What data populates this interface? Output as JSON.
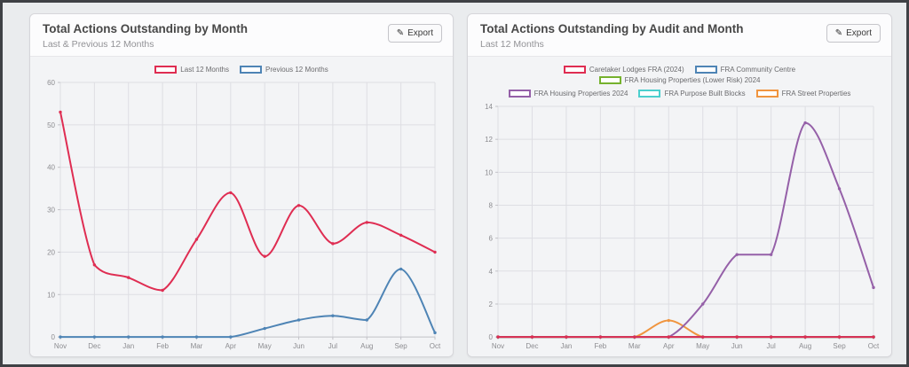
{
  "page": {
    "background": "#eaecee",
    "frame_border_color": "#3f4145"
  },
  "charts": [
    {
      "title": "Total Actions Outstanding by Month",
      "subtitle": "Last & Previous 12 Months",
      "export_label": "Export",
      "export_icon": "✎"
    },
    {
      "title": "Total Actions Outstanding by Audit and Month",
      "subtitle": "Last 12 Months",
      "export_label": "Export",
      "export_icon": "✎"
    }
  ],
  "chart_data": [
    {
      "type": "line",
      "title": "Total Actions Outstanding by Month",
      "categories": [
        "Nov",
        "Dec",
        "Jan",
        "Feb",
        "Mar",
        "Apr",
        "May",
        "Jun",
        "Jul",
        "Aug",
        "Sep",
        "Oct"
      ],
      "series": [
        {
          "name": "Last 12 Months",
          "color": "#df2d52",
          "values": [
            53,
            17,
            14,
            11,
            23,
            34,
            19,
            31,
            22,
            27,
            24,
            20
          ]
        },
        {
          "name": "Previous 12 Months",
          "color": "#4e84b5",
          "values": [
            0,
            0,
            0,
            0,
            0,
            0,
            2,
            4,
            5,
            4,
            16,
            1
          ]
        }
      ],
      "xlabel": "",
      "ylabel": "",
      "ylim": [
        0,
        60
      ],
      "ytick_step": 10,
      "grid": true,
      "legend_position": "top"
    },
    {
      "type": "line",
      "title": "Total Actions Outstanding by Audit and Month",
      "categories": [
        "Nov",
        "Dec",
        "Jan",
        "Feb",
        "Mar",
        "Apr",
        "May",
        "Jun",
        "Jul",
        "Aug",
        "Sep",
        "Oct"
      ],
      "series": [
        {
          "name": "Caretaker Lodges FRA (2024)",
          "color": "#df2d52",
          "values": [
            0,
            0,
            0,
            0,
            0,
            0,
            0,
            0,
            0,
            0,
            0,
            0
          ]
        },
        {
          "name": "FRA Community Centre",
          "color": "#4e84b5",
          "values": [
            0,
            0,
            0,
            0,
            0,
            0,
            0,
            0,
            0,
            0,
            0,
            0
          ]
        },
        {
          "name": "FRA Housing Properties (Lower Risk) 2024",
          "color": "#76b22e",
          "values": [
            0,
            0,
            0,
            0,
            0,
            0,
            0,
            0,
            0,
            0,
            0,
            0
          ]
        },
        {
          "name": "FRA Housing Properties 2024",
          "color": "#9560a8",
          "values": [
            0,
            0,
            0,
            0,
            0,
            0,
            2,
            5,
            5,
            13,
            9,
            3
          ]
        },
        {
          "name": "FRA Purpose Built Blocks",
          "color": "#4ccfce",
          "values": [
            0,
            0,
            0,
            0,
            0,
            0,
            0,
            0,
            0,
            0,
            0,
            0
          ]
        },
        {
          "name": "FRA Street Properties",
          "color": "#f0953f",
          "values": [
            0,
            0,
            0,
            0,
            0,
            1,
            0,
            0,
            0,
            0,
            0,
            0
          ]
        }
      ],
      "xlabel": "",
      "ylabel": "",
      "ylim": [
        0,
        14
      ],
      "ytick_step": 2,
      "grid": true,
      "legend_position": "top"
    }
  ],
  "style": {
    "grid_color": "#dedee3",
    "axis_color": "#c2c2c7",
    "tick_label_color": "#8c8c90"
  }
}
